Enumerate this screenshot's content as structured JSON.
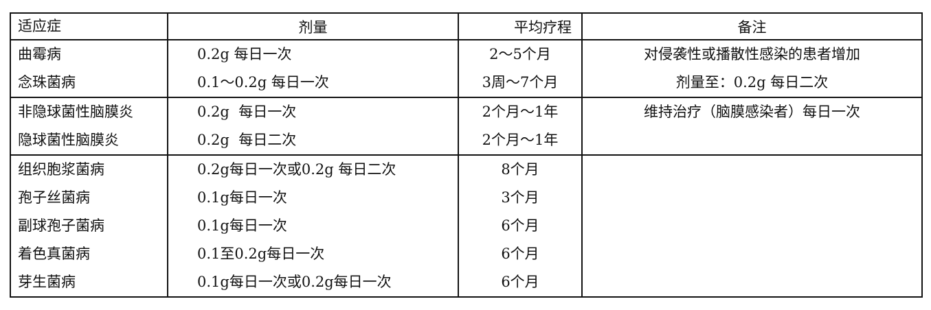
{
  "headers": [
    "适应症",
    "剂量",
    "平均疗程",
    "备注"
  ],
  "groups": [
    {
      "rows": [
        {
          "indication": "曲霉病",
          "dose": "0.2g 每日一次",
          "course": "2～5个月"
        },
        {
          "indication": "念珠菌病",
          "dose": "0.1～0.2g 每日一次",
          "course": "3周～7个月"
        }
      ],
      "notes": [
        "对侵袭性或播散性感染的患者增加",
        "剂量至：0.2g 每日二次"
      ]
    },
    {
      "rows": [
        {
          "indication": "非隐球菌性脑膜炎",
          "dose": "0.2g  每日一次",
          "course": "2个月～1年"
        },
        {
          "indication": "隐球菌性脑膜炎",
          "dose": "0.2g  每日二次",
          "course": "2个月～1年"
        }
      ],
      "notes": [
        "维持治疗（脑膜感染者）每日一次"
      ]
    },
    {
      "rows": [
        {
          "indication": "组织胞浆菌病",
          "dose": "0.2g每日一次或0.2g 每日二次",
          "course": "8个月"
        },
        {
          "indication": "孢子丝菌病",
          "dose": "0.1g每日一次",
          "course": "3个月"
        },
        {
          "indication": "副球孢子菌病",
          "dose": "0.1g每日一次",
          "course": "6个月"
        },
        {
          "indication": "着色真菌病",
          "dose": "0.1至0.2g每日一次",
          "course": "6个月"
        },
        {
          "indication": "芽生菌病",
          "dose": "0.1g每日一次或0.2g每日一次",
          "course": "6个月"
        }
      ],
      "notes": []
    }
  ]
}
